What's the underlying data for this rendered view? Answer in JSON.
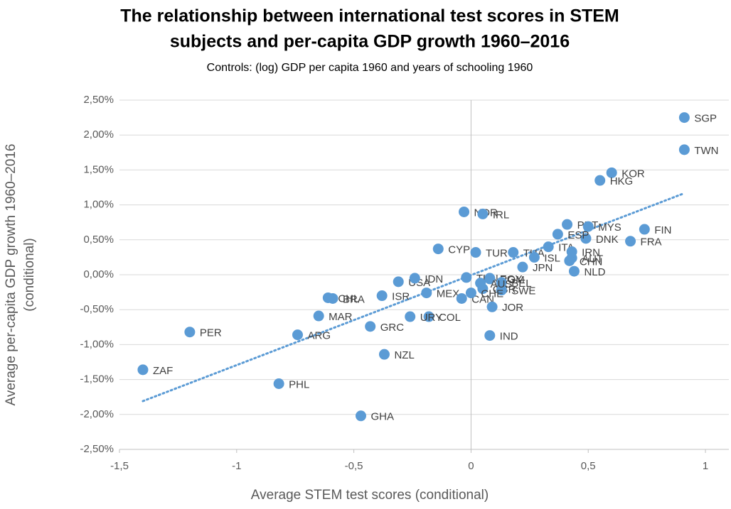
{
  "chart_data": {
    "type": "scatter",
    "title": [
      "The relationship between international test scores in STEM",
      "subjects and per-capita GDP growth 1960–2016"
    ],
    "subtitle": "Controls: (log) GDP per capita 1960 and years of schooling 1960",
    "x_label": "Average STEM test scores (conditional)",
    "y_label": [
      "Average per-capita GDP growth 1960–2016",
      "(conditional)"
    ],
    "color": "#5b9bd5",
    "trendline": true,
    "grid": true,
    "xlim": [
      -1.5,
      1.1
    ],
    "ylim": [
      -2.5,
      2.5
    ],
    "xticks": [
      {
        "value": -1.5,
        "label": "-1,5"
      },
      -1,
      {
        "value": -0.5,
        "label": "-0,5"
      },
      0,
      {
        "value": 0.5,
        "label": "0,5"
      },
      1
    ],
    "yticks": [
      {
        "value": 2.5,
        "label": "2,50%"
      },
      {
        "value": 2.0,
        "label": "2,00%"
      },
      {
        "value": 1.5,
        "label": "1,50%"
      },
      {
        "value": 1.0,
        "label": "1,00%"
      },
      {
        "value": 0.5,
        "label": "0,50%"
      },
      {
        "value": 0,
        "label": "0,00%"
      },
      {
        "value": -0.5,
        "label": "-0,50%"
      },
      {
        "value": -1.0,
        "label": "-1,00%"
      },
      {
        "value": -1.5,
        "label": "-1,50%"
      },
      {
        "value": -2.0,
        "label": "-2,00%"
      },
      {
        "value": -2.5,
        "label": "-2,50%"
      }
    ],
    "labels": [
      "SGP",
      "TWN",
      "KOR",
      "HKG",
      "NOR",
      "IRL",
      "PRT",
      "MYS",
      "FIN",
      "DNK",
      "FRA",
      "ESP",
      "CYP",
      "TUR",
      "THA",
      "ISL",
      "ITA",
      "IRN",
      "AUT",
      "NLD",
      "CHN",
      "JPN",
      "MEX",
      "USA",
      "IDN",
      "TUN",
      "ROM",
      "EGY",
      "BEL",
      "GBR",
      "SWE",
      "CAN",
      "CHE",
      "JOR",
      "IND",
      "AUS",
      "COL",
      "URY",
      "GRC",
      "ISR",
      "BRA",
      "CHL",
      "MAR",
      "ARG",
      "NZL",
      "PER",
      "ZAF",
      "PHL",
      "GHA"
    ],
    "x": [
      0.91,
      0.91,
      0.6,
      0.55,
      -0.03,
      0.05,
      0.41,
      0.5,
      0.74,
      0.49,
      0.68,
      0.37,
      -0.14,
      0.02,
      0.18,
      0.27,
      0.33,
      0.43,
      0.43,
      0.44,
      0.42,
      0.22,
      -0.19,
      -0.31,
      -0.24,
      -0.02,
      0.08,
      0.08,
      0.13,
      0.05,
      0.13,
      -0.04,
      0.0,
      0.09,
      0.08,
      0.04,
      -0.18,
      -0.26,
      -0.43,
      -0.38,
      -0.59,
      -0.61,
      -0.65,
      -0.74,
      -0.37,
      -1.2,
      -1.4,
      -0.82,
      -0.47
    ],
    "y": [
      2.25,
      1.79,
      1.46,
      1.35,
      0.9,
      0.87,
      0.72,
      0.69,
      0.65,
      0.52,
      0.48,
      0.58,
      0.37,
      0.32,
      0.32,
      0.25,
      0.4,
      0.33,
      0.24,
      0.05,
      0.2,
      0.11,
      -0.26,
      -0.1,
      -0.05,
      -0.04,
      -0.06,
      -0.05,
      -0.11,
      -0.2,
      -0.22,
      -0.34,
      -0.26,
      -0.46,
      -0.87,
      -0.12,
      -0.6,
      -0.6,
      -0.74,
      -0.3,
      -0.34,
      -0.33,
      -0.59,
      -0.86,
      -1.14,
      -0.82,
      -1.36,
      -1.56,
      -2.02
    ]
  }
}
